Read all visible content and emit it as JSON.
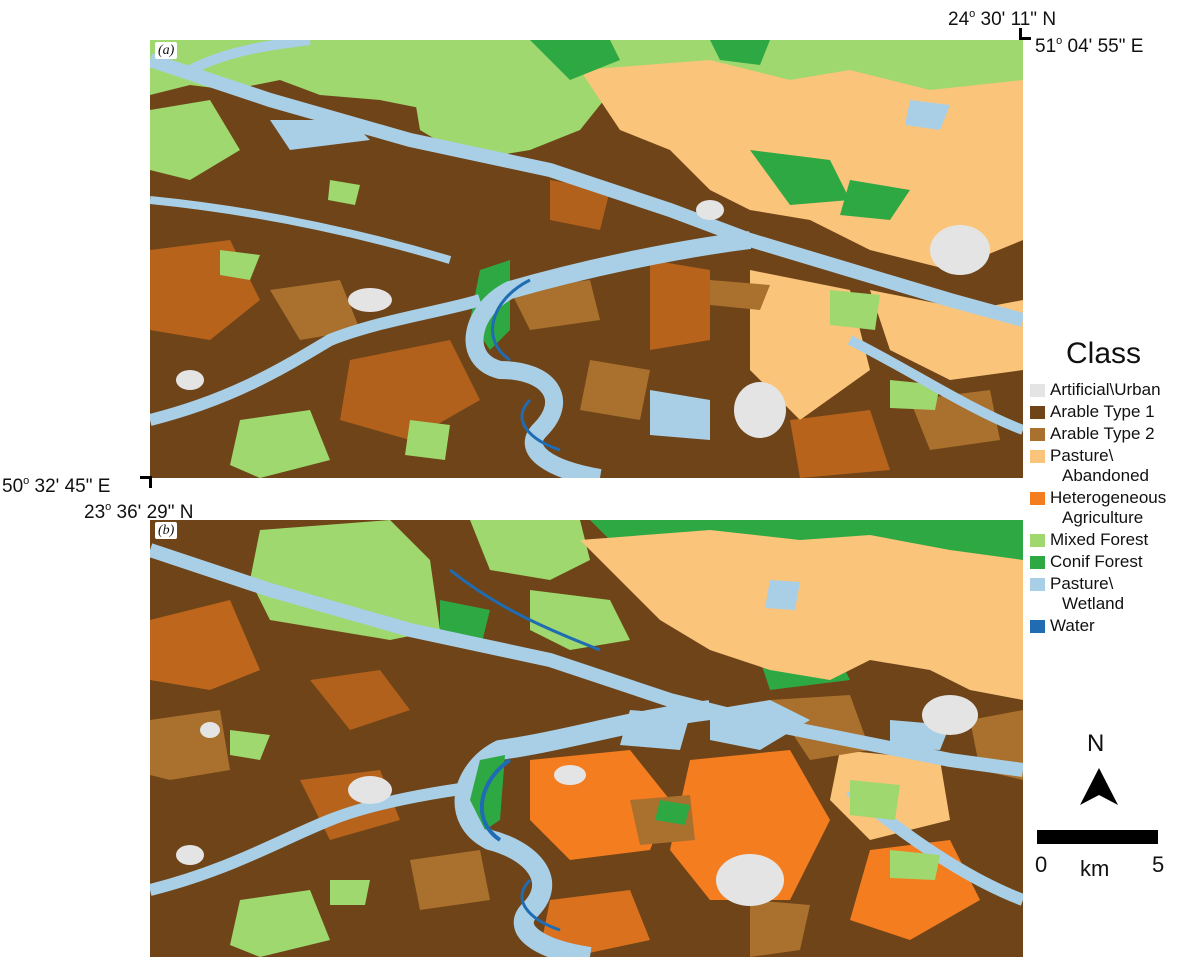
{
  "panels": {
    "a": {
      "label": "(a)"
    },
    "b": {
      "label": "(b)"
    }
  },
  "coordinates": {
    "top_right_lat": {
      "deg": "24",
      "rest": "30' 11\" N"
    },
    "top_right_lon": {
      "deg": "51",
      "rest": "04' 55\" E"
    },
    "bottom_left_lon": {
      "deg": "50",
      "rest": "32' 45\" E"
    },
    "bottom_left_lat": {
      "deg": "23",
      "rest": "36' 29\" N"
    }
  },
  "legend": {
    "title": "Class",
    "items": [
      {
        "label": "Artificial\\Urban",
        "label2": "",
        "color": "#e4e4e4"
      },
      {
        "label": "Arable Type 1",
        "label2": "",
        "color": "#6e4418"
      },
      {
        "label": "Arable Type 2",
        "label2": "",
        "color": "#a9712d"
      },
      {
        "label": "Pasture\\",
        "label2": "Abandoned",
        "color": "#fbc47b"
      },
      {
        "label": "Heterogeneous",
        "label2": "Agriculture",
        "color": "#f47d20"
      },
      {
        "label": "Mixed Forest",
        "label2": "",
        "color": "#9fd86e"
      },
      {
        "label": "Conif Forest",
        "label2": "",
        "color": "#2ea843"
      },
      {
        "label": "Pasture\\",
        "label2": "Wetland",
        "color": "#a9cfe7"
      },
      {
        "label": "Water",
        "label2": "",
        "color": "#1f6cb3"
      }
    ]
  },
  "north_arrow": {
    "label": "N",
    "icon": "north-arrow-icon"
  },
  "scale_bar": {
    "start": "0",
    "unit": "km",
    "end": "5"
  }
}
